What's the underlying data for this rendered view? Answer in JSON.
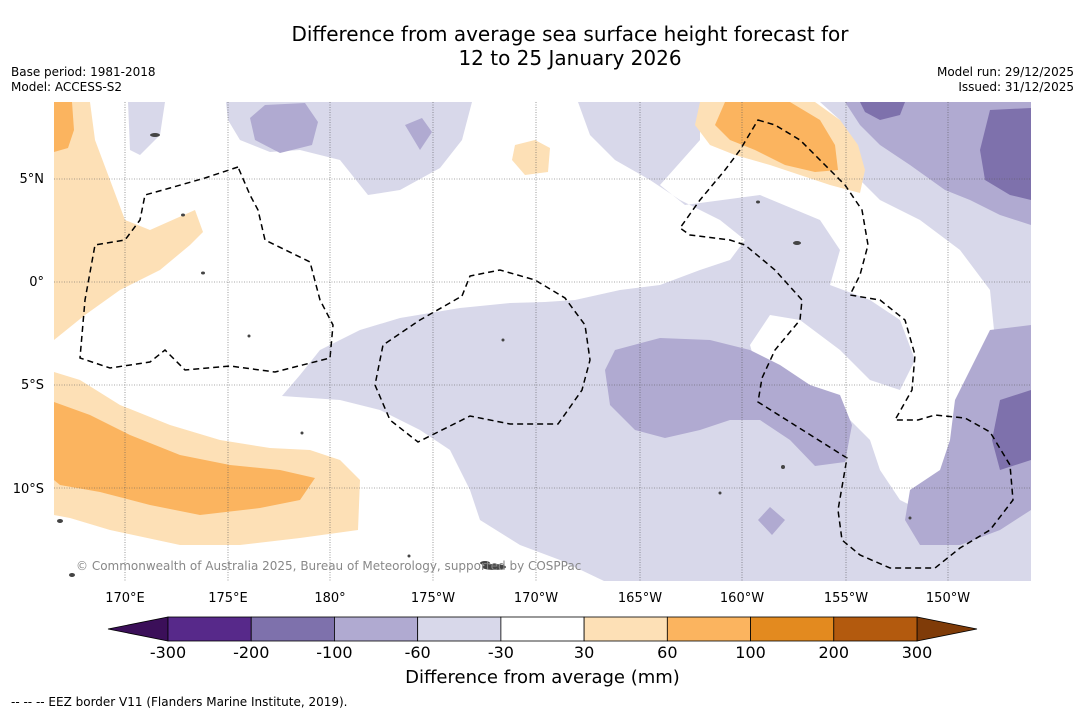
{
  "title": {
    "line1": "Difference from average sea surface height forecast for",
    "line2": "12 to 25 January 2026"
  },
  "meta_left": {
    "base_period": "Base period: 1981-2018",
    "model": "Model: ACCESS-S2"
  },
  "meta_right": {
    "model_run": "Model run: 29/12/2025",
    "issued": "Issued: 31/12/2025"
  },
  "map": {
    "lat_labels": [
      "5°N",
      "0°",
      "5°S",
      "10°S"
    ],
    "lon_labels": [
      "170°E",
      "175°E",
      "180°",
      "175°W",
      "170°W",
      "165°W",
      "160°W",
      "155°W",
      "150°W"
    ],
    "copyright": "© Commonwealth of Australia 2025, Bureau of Meteorology, supported by COSPPac"
  },
  "colorbar": {
    "ticks": [
      "-300",
      "-200",
      "-100",
      "-60",
      "-30",
      "30",
      "60",
      "100",
      "200",
      "300"
    ],
    "colors": [
      "#3b0f59",
      "#57298a",
      "#7e71ac",
      "#b0aad1",
      "#d8d8ea",
      "#ffffff",
      "#fde0b6",
      "#fbb45f",
      "#e38a1f",
      "#b35a0e",
      "#7f3b08"
    ],
    "title": "Difference from average (mm)"
  },
  "footnote": "-- -- -- EEZ border V11 (Flanders Marine Institute, 2019)."
}
